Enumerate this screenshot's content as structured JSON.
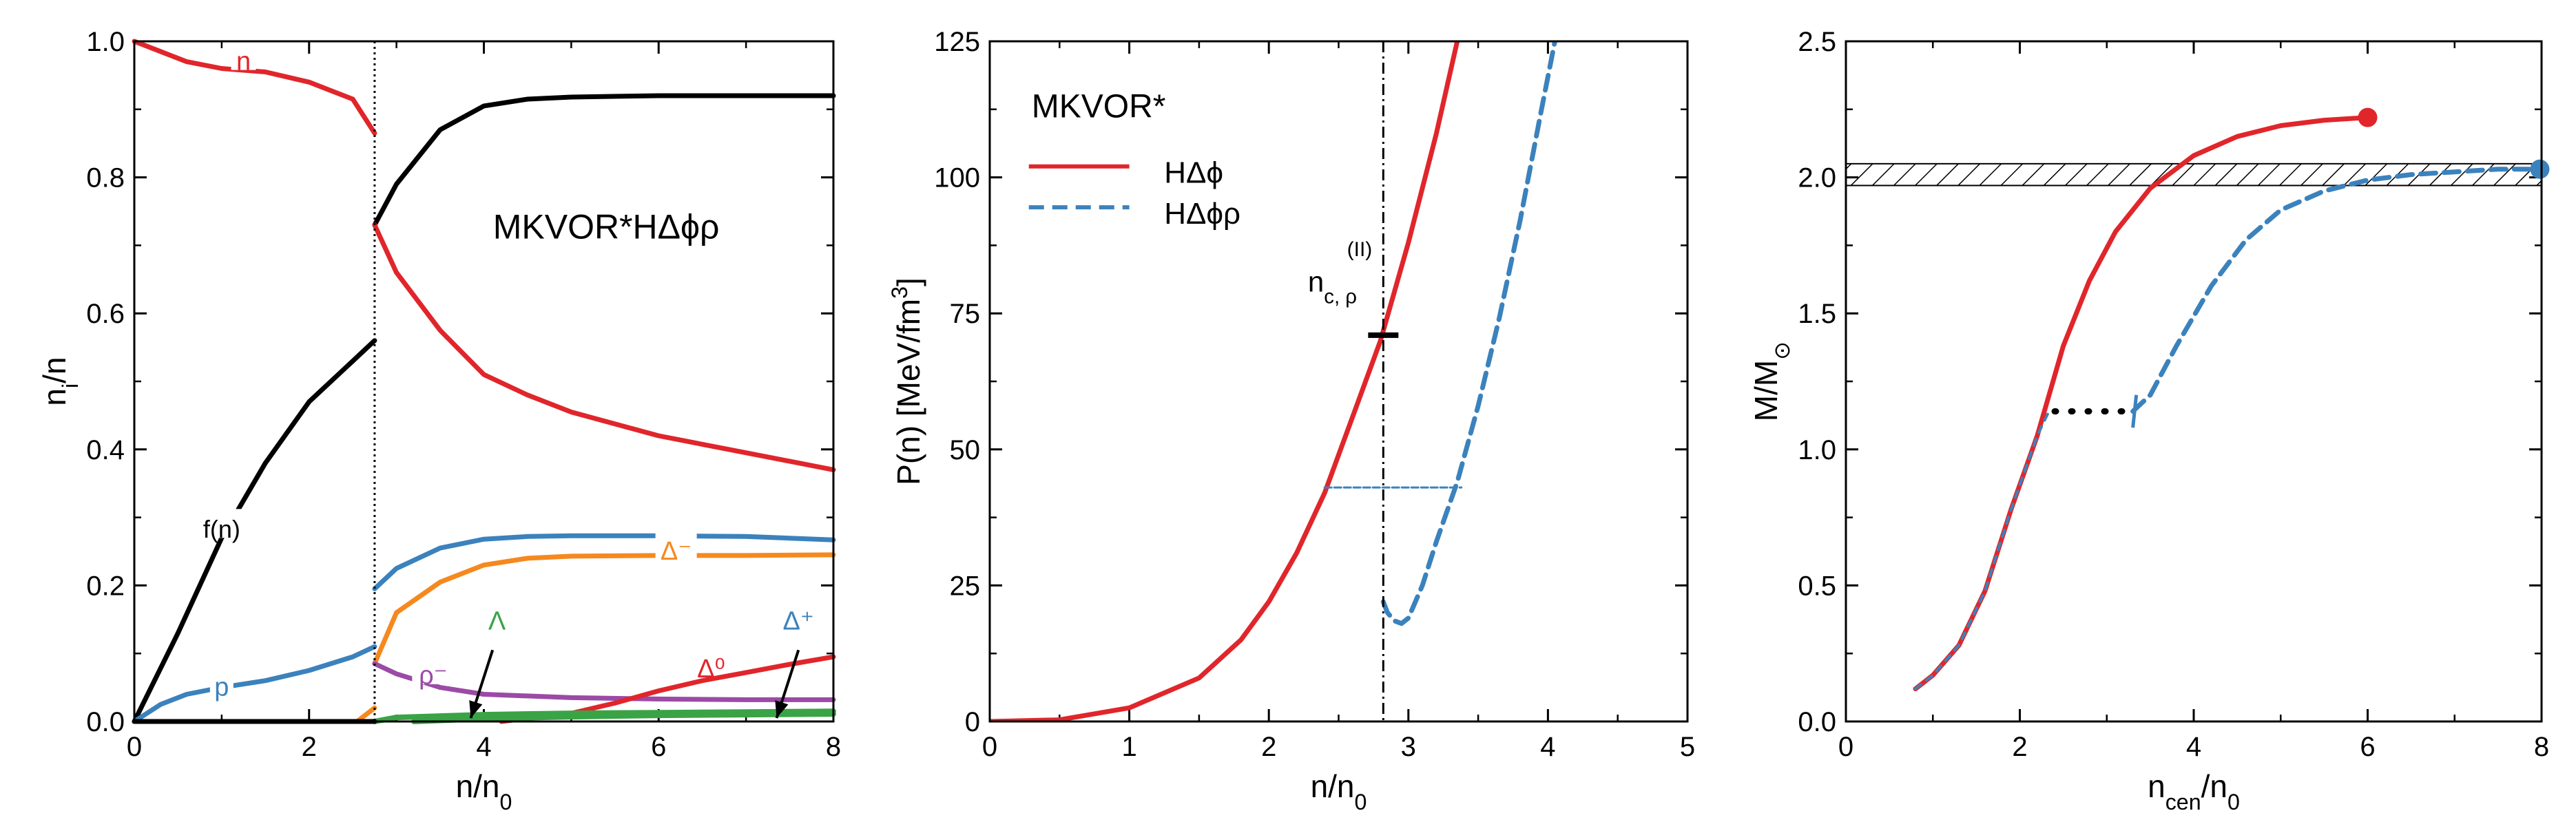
{
  "colors": {
    "red": "#e0262b",
    "blue": "#3b82bd",
    "black": "#000000",
    "orange": "#f5891f",
    "purple": "#9b4aa6",
    "green": "#3aa346"
  },
  "chart_data": [
    {
      "type": "line",
      "title": "MKVOR*HΔϕρ",
      "xlabel": "n/n",
      "xlabel_sub": "0",
      "ylabel": "n",
      "ylabel_sub": "i",
      "ylabel_tail": "/n",
      "xlim": [
        0,
        8
      ],
      "ylim": [
        0,
        1.0
      ],
      "xticks": [
        "0",
        "2",
        "4",
        "6",
        "8"
      ],
      "yticks": [
        "0.0",
        "0.2",
        "0.4",
        "0.6",
        "0.8",
        "1.0"
      ],
      "vline": 2.75,
      "labels": {
        "n": "n",
        "fn": "f(n)",
        "p": "p",
        "dm": "Δ⁻",
        "d0": "Δ⁰",
        "dp": "Δ⁺",
        "lam": "Λ",
        "rho": "ρ⁻"
      },
      "series": [
        {
          "name": "f(n)",
          "color": "#000000",
          "x": [
            0,
            0.5,
            1,
            1.5,
            2,
            2.5,
            2.75
          ],
          "y": [
            0,
            0.13,
            0.27,
            0.38,
            0.47,
            0.53,
            0.56
          ]
        },
        {
          "name": "f(n) II",
          "color": "#000000",
          "x": [
            2.75,
            3,
            3.5,
            4,
            4.5,
            5,
            6,
            7,
            8
          ],
          "y": [
            0.73,
            0.79,
            0.87,
            0.905,
            0.915,
            0.918,
            0.92,
            0.92,
            0.92
          ]
        },
        {
          "name": "n",
          "color": "#e0262b",
          "x": [
            0,
            0.3,
            0.6,
            1,
            1.5,
            2,
            2.5,
            2.75
          ],
          "y": [
            1.0,
            0.985,
            0.97,
            0.96,
            0.955,
            0.94,
            0.915,
            0.865
          ]
        },
        {
          "name": "n II",
          "color": "#e0262b",
          "x": [
            2.75,
            3,
            3.5,
            4,
            4.5,
            5,
            6,
            7,
            8
          ],
          "y": [
            0.73,
            0.66,
            0.575,
            0.51,
            0.48,
            0.455,
            0.42,
            0.395,
            0.37
          ]
        },
        {
          "name": "p",
          "color": "#3b82bd",
          "x": [
            0,
            0.3,
            0.6,
            1,
            1.5,
            2,
            2.5,
            2.75
          ],
          "y": [
            0,
            0.025,
            0.04,
            0.05,
            0.06,
            0.075,
            0.095,
            0.11
          ]
        },
        {
          "name": "p II",
          "color": "#3b82bd",
          "x": [
            2.75,
            3,
            3.5,
            4,
            4.5,
            5,
            6,
            7,
            8
          ],
          "y": [
            0.195,
            0.225,
            0.255,
            0.268,
            0.272,
            0.273,
            0.273,
            0.272,
            0.267
          ]
        },
        {
          "name": "Δ⁻",
          "color": "#f5891f",
          "x": [
            2.55,
            2.75
          ],
          "y": [
            0.0,
            0.02
          ]
        },
        {
          "name": "Δ⁻ II",
          "color": "#f5891f",
          "x": [
            2.75,
            3,
            3.5,
            4,
            4.5,
            5,
            6,
            7,
            8
          ],
          "y": [
            0.085,
            0.16,
            0.205,
            0.23,
            0.24,
            0.243,
            0.244,
            0.244,
            0.245
          ]
        },
        {
          "name": "ρ⁻",
          "color": "#9b4aa6",
          "x": [
            2.75,
            3,
            3.5,
            4,
            5,
            6,
            7,
            8
          ],
          "y": [
            0.085,
            0.07,
            0.05,
            0.04,
            0.035,
            0.033,
            0.032,
            0.032
          ]
        },
        {
          "name": "Δ⁰",
          "color": "#e0262b",
          "x": [
            4.2,
            5,
            5.5,
            6,
            6.5,
            7,
            7.5,
            8
          ],
          "y": [
            0.0,
            0.012,
            0.027,
            0.045,
            0.06,
            0.072,
            0.084,
            0.095
          ]
        },
        {
          "name": "Λ",
          "color": "#3aa346",
          "x": [
            2.75,
            3,
            4,
            5,
            6,
            7,
            8
          ],
          "y": [
            0.0,
            0.006,
            0.01,
            0.012,
            0.013,
            0.014,
            0.015
          ]
        },
        {
          "name": "Δ⁺",
          "color": "#3aa346",
          "x": [
            3.2,
            4,
            5,
            6,
            7,
            8
          ],
          "y": [
            0.0,
            0.004,
            0.007,
            0.009,
            0.01,
            0.011
          ]
        },
        {
          "name": "baseline",
          "color": "#000000",
          "x": [
            0,
            2.75
          ],
          "y": [
            0,
            0
          ]
        }
      ]
    },
    {
      "type": "line",
      "legend_title": "MKVOR*",
      "xlabel": "n/n",
      "xlabel_sub": "0",
      "ylabel": "P(n) [MeV/fm",
      "ylabel_sup": "3",
      "ylabel_tail": "]",
      "xlim": [
        0,
        5
      ],
      "ylim": [
        0,
        125
      ],
      "xticks": [
        "0",
        "1",
        "2",
        "3",
        "4",
        "5"
      ],
      "yticks": [
        "0",
        "25",
        "50",
        "75",
        "100",
        "125"
      ],
      "vline": 2.82,
      "annotation": {
        "base": "n",
        "sub": "c, ρ",
        "sup": "(II)",
        "x": 2.82,
        "y": 71
      },
      "series": [
        {
          "name": "HΔϕ",
          "style": "solid",
          "color": "#e0262b",
          "x": [
            0,
            0.5,
            1,
            1.5,
            1.8,
            2,
            2.2,
            2.4,
            2.6,
            2.8,
            3,
            3.2,
            3.35
          ],
          "y": [
            0,
            0.3,
            2.5,
            8,
            15,
            22,
            31,
            42,
            56,
            70,
            88,
            108,
            125
          ]
        },
        {
          "name": "HΔϕρ",
          "style": "dashed",
          "color": "#3b82bd",
          "x": [
            2.82,
            2.85,
            2.9,
            2.95,
            3.0,
            3.1,
            3.2,
            3.35,
            3.5,
            3.65,
            3.8,
            3.95,
            4.05
          ],
          "y": [
            22,
            20,
            18.5,
            18,
            19,
            25,
            33,
            44,
            58,
            74,
            92,
            112,
            125
          ]
        },
        {
          "name": "Maxwell",
          "style": "dashed-thin",
          "color": "#3b82bd",
          "x": [
            2.4,
            3.38
          ],
          "y": [
            43,
            43
          ]
        }
      ]
    },
    {
      "type": "line",
      "xlabel": "n",
      "xlabel_sub": "cen",
      "xlabel_tail": "/n",
      "xlabel_sub2": "0",
      "ylabel": "M/M",
      "ylabel_sub": "⊙",
      "xlim": [
        0,
        8
      ],
      "ylim": [
        0,
        2.5
      ],
      "xticks": [
        "0",
        "2",
        "4",
        "6",
        "8"
      ],
      "yticks": [
        "0.0",
        "0.5",
        "1.0",
        "1.5",
        "2.0",
        "2.5"
      ],
      "band": [
        1.97,
        2.05
      ],
      "series": [
        {
          "name": "HΔϕ",
          "style": "solid",
          "color": "#e0262b",
          "x": [
            0.8,
            1.0,
            1.3,
            1.6,
            1.9,
            2.2,
            2.5,
            2.8,
            3.1,
            3.5,
            4,
            4.5,
            5,
            5.5,
            6
          ],
          "y": [
            0.12,
            0.17,
            0.28,
            0.48,
            0.78,
            1.05,
            1.38,
            1.62,
            1.8,
            1.96,
            2.08,
            2.15,
            2.19,
            2.21,
            2.22
          ]
        },
        {
          "name": "common",
          "style": "dashed-overlay",
          "color": "#3b82bd",
          "x": [
            0.8,
            1.0,
            1.3,
            1.6,
            1.9,
            2.2,
            2.35
          ],
          "y": [
            0.12,
            0.17,
            0.28,
            0.48,
            0.78,
            1.05,
            1.15
          ]
        },
        {
          "name": "HΔϕρ",
          "style": "dashed",
          "color": "#3b82bd",
          "x": [
            3.3,
            3.5,
            3.8,
            4.2,
            4.6,
            5,
            5.5,
            6,
            6.5,
            7,
            7.5,
            8
          ],
          "y": [
            1.14,
            1.2,
            1.38,
            1.6,
            1.77,
            1.88,
            1.95,
            1.99,
            2.01,
            2.02,
            2.03,
            2.03
          ]
        },
        {
          "name": "gap",
          "style": "dotted",
          "color": "#000000",
          "x": [
            2.4,
            3.2
          ],
          "y": [
            1.14,
            1.14
          ]
        }
      ],
      "end_points": [
        {
          "x": 6.0,
          "y": 2.22,
          "color": "#e0262b"
        },
        {
          "x": 7.98,
          "y": 2.03,
          "color": "#3b82bd"
        }
      ]
    }
  ]
}
